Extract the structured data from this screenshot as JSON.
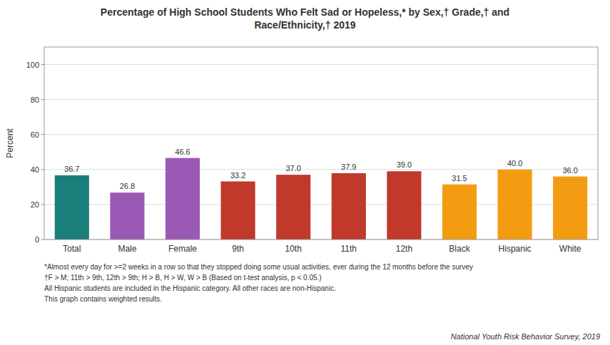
{
  "chart_data": {
    "type": "bar",
    "title": "Percentage of High School Students Who Felt Sad or Hopeless,* by Sex,† Grade,† and\nRace/Ethnicity,† 2019",
    "categories": [
      "Total",
      "Male",
      "Female",
      "9th",
      "10th",
      "11th",
      "12th",
      "Black",
      "Hispanic",
      "White"
    ],
    "values": [
      36.7,
      26.8,
      46.6,
      33.2,
      37.0,
      37.9,
      39.0,
      31.5,
      40.0,
      36.0
    ],
    "value_labels": [
      "36.7",
      "26.8",
      "46.6",
      "33.2",
      "37.0",
      "37.9",
      "39.0",
      "31.5",
      "40.0",
      "36.0"
    ],
    "colors": [
      "#1A7F7A",
      "#9B59B6",
      "#9B59B6",
      "#C0392B",
      "#C0392B",
      "#C0392B",
      "#C0392B",
      "#F39C12",
      "#F39C12",
      "#F39C12"
    ],
    "ylabel": "Percent",
    "ylim": [
      0,
      110
    ],
    "yticks": [
      0,
      20,
      40,
      60,
      80,
      100
    ],
    "grid": true,
    "data_labels": true,
    "annotations": [
      "*Almost every day for >=2 weeks in a row so that they stopped doing some usual activities, ever during the 12 months before the survey",
      "†F > M; 11th > 9th, 12th > 9th; H > B, H > W, W > B (Based on t-test analysis, p < 0.05.)",
      "All Hispanic students are included in the Hispanic category.  All other races are non-Hispanic.",
      "This graph contains weighted results."
    ],
    "source": "National Youth Risk Behavior Survey, 2019"
  }
}
